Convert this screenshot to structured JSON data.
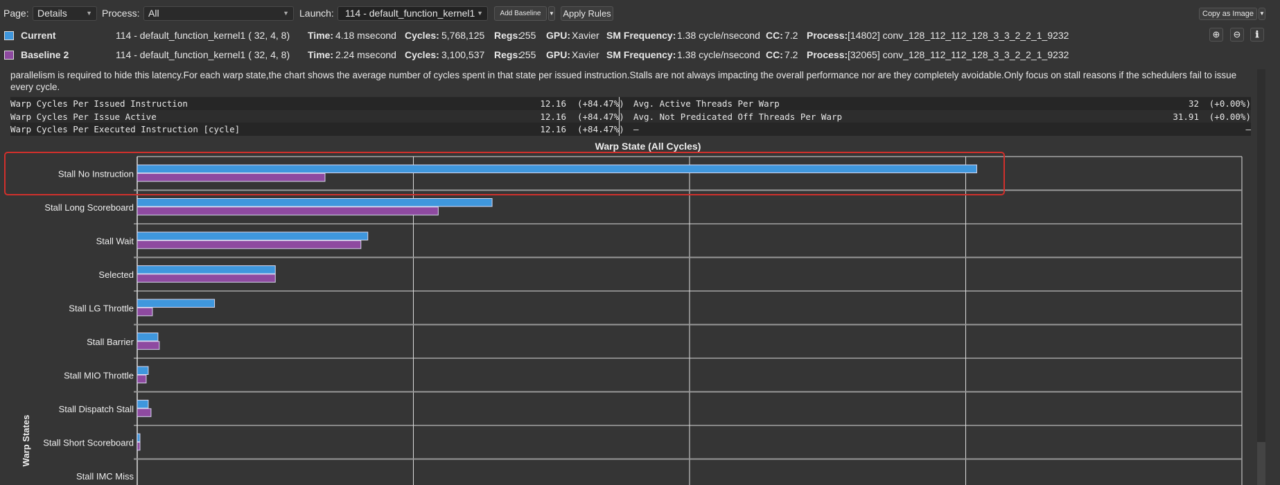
{
  "toolbar": {
    "page_label": "Page:",
    "page_value": "Details",
    "process_label": "Process:",
    "process_value": "All",
    "launch_label": "Launch:",
    "launch_value": "114 - default_function_kernel1",
    "add_baseline": "Add Baseline",
    "apply_rules": "Apply Rules",
    "copy_as_image": "Copy as Image"
  },
  "results": [
    {
      "name": "Current",
      "color": "#3f97dd",
      "kernel": "114 - default_function_kernel1 (   32,   4,   8)",
      "time_label": "Time:",
      "time": "4.18 msecond",
      "cycles_label": "Cycles:",
      "cycles": "5,768,125",
      "regs_label": "Regs:",
      "regs": "255",
      "gpu_label": "GPU:",
      "gpu": "Xavier",
      "smf_label": "SM Frequency:",
      "smf": "1.38 cycle/nsecond",
      "cc_label": "CC:",
      "cc": "7.2",
      "process_label": "Process:",
      "process": "[14802] conv_128_112_112_128_3_3_2_2_1_9232"
    },
    {
      "name": "Baseline 2",
      "color": "#8e4aa0",
      "kernel": "114 - default_function_kernel1 (   32,   4,   8)",
      "time_label": "Time:",
      "time": "2.24 msecond",
      "cycles_label": "Cycles:",
      "cycles": "3,100,537",
      "regs_label": "Regs:",
      "regs": "255",
      "gpu_label": "GPU:",
      "gpu": "Xavier",
      "smf_label": "SM Frequency:",
      "smf": "1.38 cycle/nsecond",
      "cc_label": "CC:",
      "cc": "7.2",
      "process_label": "Process:",
      "process": "[32065] conv_128_112_112_128_3_3_2_2_1_9232"
    }
  ],
  "icons": [
    "zoom-in-icon",
    "zoom-out-icon",
    "info-icon"
  ],
  "description": {
    "line1": "parallelism is required to hide this latency.For each warp state,the chart shows the average number of cycles spent in that state per issued instruction.Stalls are not always impacting the overall performance nor are they completely avoidable.Only focus on stall reasons if the schedulers fail to issue",
    "line2": "every cycle."
  },
  "metrics": [
    {
      "l_name": "Warp Cycles Per Issued Instruction",
      "l_value": "12.16",
      "l_delta": "(+84.47%)",
      "r_name": "Avg. Active Threads Per Warp",
      "r_value": "32",
      "r_delta": "(+0.00%)"
    },
    {
      "l_name": "Warp Cycles Per Issue Active",
      "l_value": "12.16",
      "l_delta": "(+84.47%)",
      "r_name": "Avg. Not Predicated Off Threads Per Warp",
      "r_value": "31.91",
      "r_delta": "(+0.00%)"
    },
    {
      "l_name": "Warp Cycles Per Executed Instruction [cycle]",
      "l_value": "12.16",
      "l_delta": "(+84.47%)",
      "r_name": "–",
      "r_value": "",
      "r_delta": "–"
    }
  ],
  "chart_data": {
    "type": "bar",
    "orientation": "horizontal",
    "title": "Warp State (All Cycles)",
    "ylabel": "Warp States",
    "xlabel": "",
    "xlim": [
      0,
      8
    ],
    "grid": true,
    "categories": [
      "Stall No Instruction",
      "Stall Long Scoreboard",
      "Stall Wait",
      "Selected",
      "Stall LG Throttle",
      "Stall Barrier",
      "Stall MIO Throttle",
      "Stall Dispatch Stall",
      "Stall Short Scoreboard",
      "Stall IMC Miss"
    ],
    "series": [
      {
        "name": "Current",
        "color": "#3f97dd",
        "values": [
          6.08,
          2.57,
          1.67,
          1.0,
          0.56,
          0.15,
          0.08,
          0.08,
          0.02,
          0.0
        ]
      },
      {
        "name": "Baseline 2",
        "color": "#8e4aa0",
        "values": [
          1.36,
          2.18,
          1.62,
          1.0,
          0.11,
          0.16,
          0.065,
          0.1,
          0.02,
          0.0
        ]
      }
    ],
    "highlighted_category": "Stall No Instruction"
  }
}
